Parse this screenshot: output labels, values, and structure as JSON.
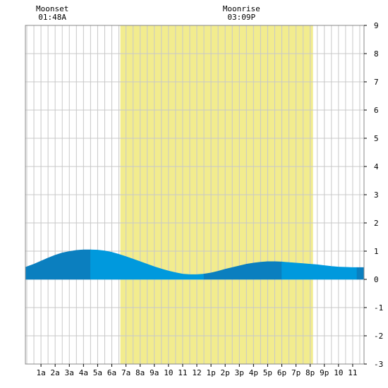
{
  "chart_data": {
    "type": "area",
    "x_tick_labels": [
      "1a",
      "2a",
      "3a",
      "4a",
      "5a",
      "6a",
      "7a",
      "8a",
      "9a",
      "10",
      "11",
      "12",
      "1p",
      "2p",
      "3p",
      "4p",
      "5p",
      "6p",
      "7p",
      "8p",
      "9p",
      "10",
      "11"
    ],
    "x_range_hours": [
      -0.1,
      23.8
    ],
    "y_range": [
      -3,
      9
    ],
    "y_ticks": [
      -3,
      -2,
      -1,
      0,
      1,
      2,
      3,
      4,
      5,
      6,
      7,
      8,
      9
    ],
    "grid": true,
    "daylight_band_hours": [
      6.6,
      20.2
    ],
    "series": [
      {
        "x_hours": [
          -0.1,
          0.5,
          1,
          1.5,
          2,
          2.5,
          3,
          3.5,
          4,
          4.5,
          5,
          5.5,
          6,
          6.5,
          7,
          7.5,
          8,
          8.5,
          9,
          9.5,
          10,
          10.5,
          11,
          11.5,
          12,
          12.5,
          13,
          13.5,
          14,
          14.5,
          15,
          15.5,
          16,
          16.5,
          17,
          17.5,
          18,
          18.5,
          19,
          19.5,
          20,
          20.5,
          21,
          21.5,
          22,
          22.5,
          23,
          23.5,
          23.8
        ],
        "values": [
          0.43,
          0.54,
          0.65,
          0.76,
          0.86,
          0.94,
          0.99,
          1.03,
          1.05,
          1.05,
          1.04,
          1.01,
          0.96,
          0.89,
          0.81,
          0.72,
          0.63,
          0.54,
          0.45,
          0.37,
          0.3,
          0.24,
          0.19,
          0.17,
          0.17,
          0.19,
          0.23,
          0.29,
          0.36,
          0.42,
          0.48,
          0.54,
          0.58,
          0.61,
          0.63,
          0.63,
          0.62,
          0.6,
          0.58,
          0.56,
          0.54,
          0.52,
          0.49,
          0.46,
          0.44,
          0.43,
          0.42,
          0.42,
          0.42
        ]
      }
    ],
    "segments": [
      {
        "from": -0.1,
        "to": 4.5,
        "color": "#0b7fbf"
      },
      {
        "from": 4.5,
        "to": 12.5,
        "color": "#0099dd"
      },
      {
        "from": 12.5,
        "to": 18.0,
        "color": "#0b7fbf"
      },
      {
        "from": 18.0,
        "to": 23.3,
        "color": "#0099dd"
      },
      {
        "from": 23.3,
        "to": 23.8,
        "color": "#0b7fbf"
      }
    ],
    "annotations": [
      {
        "label": "Moonset",
        "time": "01:48A",
        "hour": 1.8
      },
      {
        "label": "Moonrise",
        "time": "03:09P",
        "hour": 15.15
      }
    ],
    "colors": {
      "daylight": "#f2ec8e",
      "grid": "#c8c8c8",
      "border": "#888888"
    }
  }
}
